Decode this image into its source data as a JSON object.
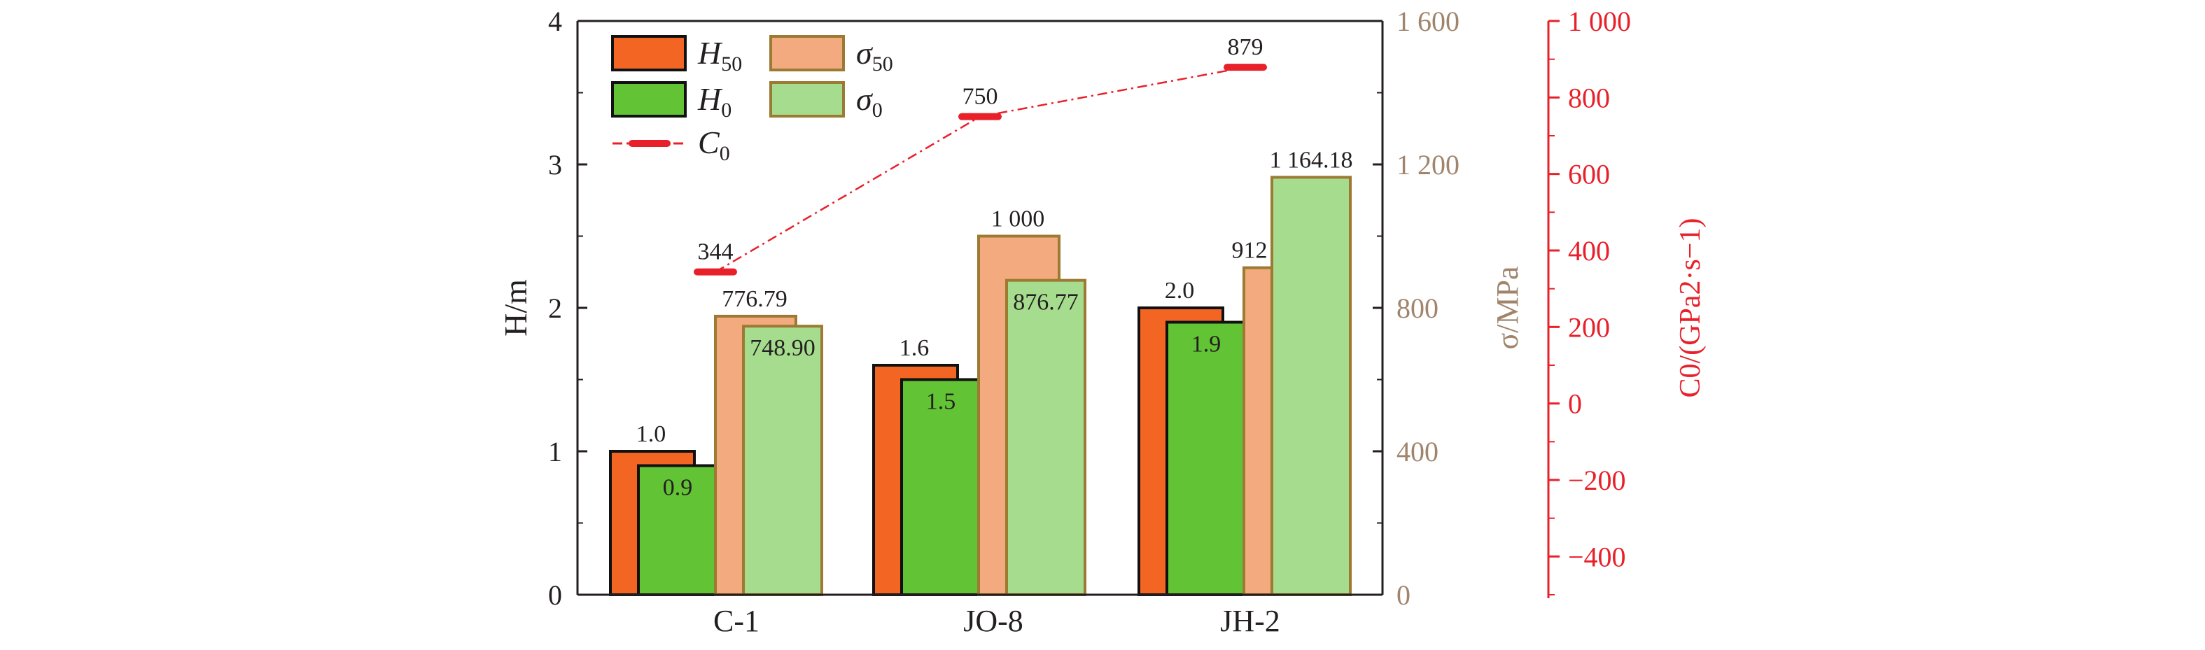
{
  "chart_data": {
    "type": "bar",
    "categories": [
      "C-1",
      "JO-8",
      "JH-2"
    ],
    "series": [
      {
        "key": "H50",
        "name": "H50",
        "axis": "left",
        "kind": "bar",
        "color": "#F26522",
        "values": [
          1.0,
          1.6,
          2.0
        ],
        "labels": [
          "1.0",
          "1.6",
          "2.0"
        ]
      },
      {
        "key": "H0",
        "name": "H0",
        "axis": "left",
        "kind": "bar",
        "color": "#62C334",
        "values": [
          0.9,
          1.5,
          1.9
        ],
        "labels": [
          "0.9",
          "1.5",
          "1.9"
        ]
      },
      {
        "key": "s50",
        "name": "σ50",
        "axis": "middle",
        "kind": "bar",
        "color": "#F2AA7E",
        "values": [
          776.79,
          1000,
          912
        ],
        "labels": [
          "776.79",
          "1 000",
          "912"
        ]
      },
      {
        "key": "s0",
        "name": "σ0",
        "axis": "middle",
        "kind": "bar",
        "color": "#A6DC8E",
        "values": [
          748.9,
          876.77,
          1164.18
        ],
        "labels": [
          "748.90",
          "876.77",
          "1 164.18"
        ]
      },
      {
        "key": "C0",
        "name": "C0",
        "axis": "right",
        "kind": "line",
        "color": "#E8202A",
        "values": [
          344,
          750,
          879
        ],
        "labels": [
          "344",
          "750",
          "879"
        ]
      }
    ],
    "axes": {
      "left": {
        "label": "H/m",
        "min": 0,
        "max": 4,
        "ticks": [
          "0",
          "1",
          "2",
          "3",
          "4"
        ],
        "tick_values": [
          0,
          1,
          2,
          3,
          4
        ],
        "color": "#231F20"
      },
      "middle": {
        "label": "σ/MPa",
        "min": 0,
        "max": 1600,
        "ticks": [
          "0",
          "400",
          "800",
          "1 200",
          "1 600"
        ],
        "tick_values": [
          0,
          400,
          800,
          1200,
          1600
        ],
        "color": "#A0846B"
      },
      "right": {
        "label": "C0/(GPa2·s−1)",
        "min": -500,
        "max": 1000,
        "ticks": [
          "−400",
          "−200",
          "0",
          "200",
          "400",
          "600",
          "800",
          "1 000"
        ],
        "tick_values": [
          -400,
          -200,
          0,
          200,
          400,
          600,
          800,
          1000
        ],
        "color": "#E8202A"
      }
    },
    "legend": {
      "placement": "top-left",
      "items": [
        {
          "key": "H50",
          "main": "H",
          "sub": "50"
        },
        {
          "key": "s50",
          "main": "σ",
          "sub": "50"
        },
        {
          "key": "H0",
          "main": "H",
          "sub": "0"
        },
        {
          "key": "s0",
          "main": "σ",
          "sub": "0"
        },
        {
          "key": "C0",
          "main": "C",
          "sub": "0"
        }
      ]
    },
    "grid": false,
    "title": ""
  }
}
